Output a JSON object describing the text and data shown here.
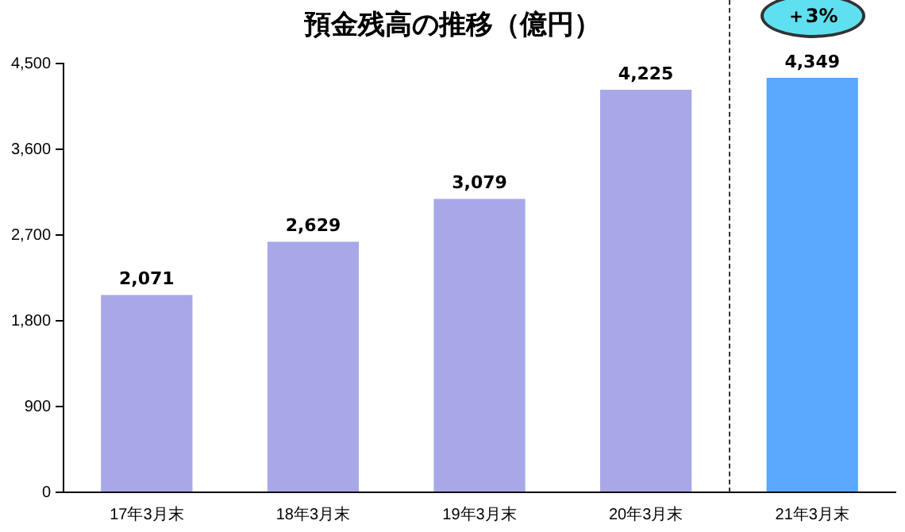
{
  "chart_data": {
    "type": "bar",
    "title": "預金残高の推移（億円）",
    "categories": [
      "17年3月末",
      "18年3月末",
      "19年3月末",
      "20年3月末",
      "21年3月末"
    ],
    "values": [
      2071,
      2629,
      3079,
      4225,
      4349
    ],
    "colors": [
      "#a8a8e8",
      "#a8a8e8",
      "#a8a8e8",
      "#a8a8e8",
      "#5aa8ff"
    ],
    "value_labels": [
      "2,071",
      "2,629",
      "3,079",
      "4,225",
      "4,349"
    ],
    "ylim": [
      0,
      4500
    ],
    "yticks": [
      {
        "value": 0,
        "label": "0"
      },
      {
        "value": 900,
        "label": "900"
      },
      {
        "value": 1800,
        "label": "1,800"
      },
      {
        "value": 2700,
        "label": "2,700"
      },
      {
        "value": 3600,
        "label": "3,600"
      },
      {
        "value": 4500,
        "label": "4,500"
      }
    ],
    "grid": false,
    "annotations": [
      "＋3%"
    ]
  }
}
